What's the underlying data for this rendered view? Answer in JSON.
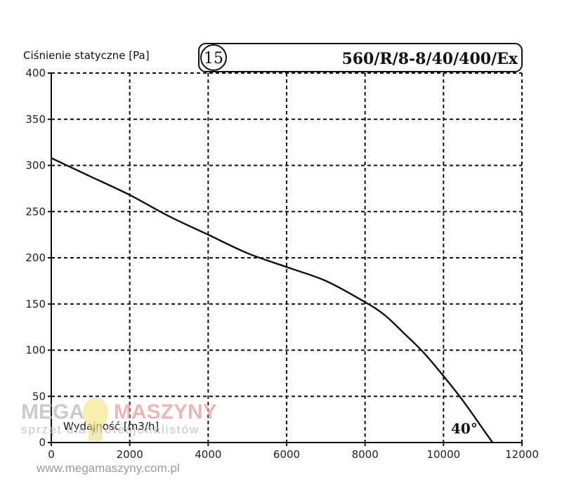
{
  "chart_data": {
    "type": "line",
    "ylabel": "Ciśnienie statyczne [Pa]",
    "xlabel": "Wydajność [m3/h]",
    "model": "560/R/8-8/40/400/Ex",
    "curve_number": "15",
    "blade_angle": "40°",
    "xlim": [
      0,
      12000
    ],
    "ylim": [
      0,
      400
    ],
    "x_ticks": [
      0,
      2000,
      4000,
      6000,
      8000,
      10000,
      12000
    ],
    "y_ticks": [
      0,
      50,
      100,
      150,
      200,
      250,
      300,
      350,
      400
    ],
    "grid": true,
    "grid_style": "dashed",
    "series": [
      {
        "x": [
          0,
          1000,
          2000,
          3000,
          4000,
          5000,
          6000,
          7000,
          8000,
          8500,
          9000,
          9500,
          10000,
          10500,
          11000,
          11250
        ],
        "y": [
          308,
          288,
          268,
          245,
          225,
          205,
          190,
          175,
          152,
          138,
          118,
          97,
          72,
          45,
          15,
          0
        ]
      }
    ]
  },
  "watermark": {
    "logo_left": "MEGA",
    "logo_right": "MASZYNY",
    "tagline": "sprzęt dla profesjonalistów",
    "url": "www.megamaszyny.com.pl",
    "icon": "lightbulb-icon"
  }
}
